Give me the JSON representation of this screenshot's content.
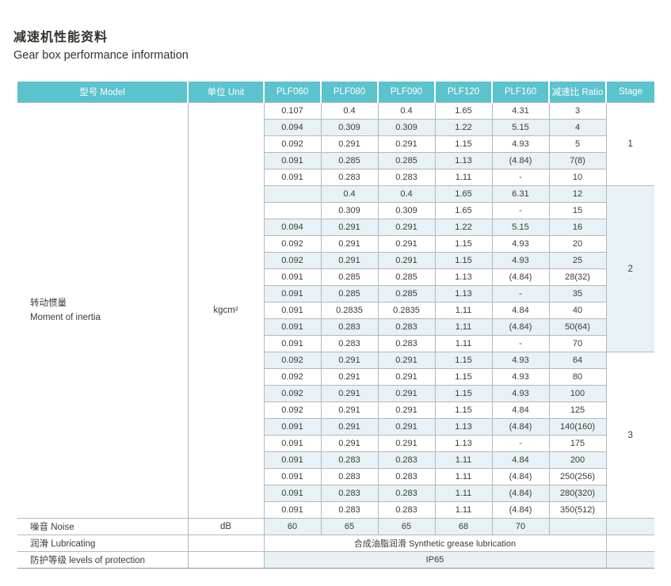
{
  "page": {
    "title_zh": "减速机性能资料",
    "title_en": "Gear box performance information"
  },
  "colors": {
    "header_bg": "#5bc3cd",
    "header_text": "#ffffff",
    "row_alt_bg": "#e8f1f5",
    "grid_line": "#b3b9bc",
    "strong_line": "#8d9396",
    "text": "#3b3b3b"
  },
  "table": {
    "headers": [
      "型号 Model",
      "单位 Unit",
      "PLF060",
      "PLF080",
      "PLF090",
      "PLF120",
      "PLF160",
      "减速比 Ratio",
      "Stage"
    ],
    "inertia": {
      "model_zh": "转动惯量",
      "model_en": "Moment of inertia",
      "unit": "kgcm²"
    },
    "stages": [
      {
        "label": "1",
        "row_count": 5
      },
      {
        "label": "2",
        "row_count": 10
      },
      {
        "label": "3",
        "row_count": 10
      }
    ],
    "rows": [
      [
        "0.107",
        "0.4",
        "0.4",
        "1.65",
        "4.31",
        "3"
      ],
      [
        "0.094",
        "0.309",
        "0.309",
        "1.22",
        "5.15",
        "4"
      ],
      [
        "0.092",
        "0.291",
        "0.291",
        "1.15",
        "4.93",
        "5"
      ],
      [
        "0.091",
        "0.285",
        "0.285",
        "1.13",
        "(4.84)",
        "7(8)"
      ],
      [
        "0.091",
        "0.283",
        "0.283",
        "1.11",
        "-",
        "10"
      ],
      [
        "",
        "0.4",
        "0.4",
        "1.65",
        "6.31",
        "12"
      ],
      [
        "",
        "0.309",
        "0.309",
        "1.65",
        "-",
        "15"
      ],
      [
        "0.094",
        "0.291",
        "0.291",
        "1.22",
        "5.15",
        "16"
      ],
      [
        "0.092",
        "0.291",
        "0.291",
        "1.15",
        "4.93",
        "20"
      ],
      [
        "0.092",
        "0.291",
        "0.291",
        "1.15",
        "4.93",
        "25"
      ],
      [
        "0.091",
        "0.285",
        "0.285",
        "1.13",
        "(4.84)",
        "28(32)"
      ],
      [
        "0.091",
        "0.285",
        "0.285",
        "1.13",
        "-",
        "35"
      ],
      [
        "0.091",
        "0.2835",
        "0.2835",
        "1.11",
        "4.84",
        "40"
      ],
      [
        "0.091",
        "0.283",
        "0.283",
        "1.11",
        "(4.84)",
        "50(64)"
      ],
      [
        "0.091",
        "0.283",
        "0.283",
        "1.11",
        "-",
        "70"
      ],
      [
        "0.092",
        "0.291",
        "0.291",
        "1.15",
        "4.93",
        "64"
      ],
      [
        "0.092",
        "0.291",
        "0.291",
        "1.15",
        "4.93",
        "80"
      ],
      [
        "0.092",
        "0.291",
        "0.291",
        "1.15",
        "4.93",
        "100"
      ],
      [
        "0.092",
        "0.291",
        "0.291",
        "1.15",
        "4.84",
        "125"
      ],
      [
        "0.091",
        "0.291",
        "0.291",
        "1.13",
        "(4.84)",
        "140(160)"
      ],
      [
        "0.091",
        "0.291",
        "0.291",
        "1.13",
        "-",
        "175"
      ],
      [
        "0.091",
        "0.283",
        "0.283",
        "1.11",
        "4.84",
        "200"
      ],
      [
        "0.091",
        "0.283",
        "0.283",
        "1.11",
        "(4.84)",
        "250(256)"
      ],
      [
        "0.091",
        "0.283",
        "0.283",
        "1.11",
        "(4.84)",
        "280(320)"
      ],
      [
        "0.091",
        "0.283",
        "0.283",
        "1.11",
        "(4.84)",
        "350(512)"
      ]
    ],
    "noise": {
      "label": "噪音 Noise",
      "unit": "dB",
      "values": [
        "60",
        "65",
        "65",
        "68",
        "70"
      ]
    },
    "lubricating": {
      "label": "润滑 Lubricating",
      "unit": "",
      "value": "合成油脂润滑 Synthetic grease lubrication"
    },
    "protection": {
      "label": "防护等级 levels of protection",
      "unit": "",
      "value": "IP65"
    }
  }
}
